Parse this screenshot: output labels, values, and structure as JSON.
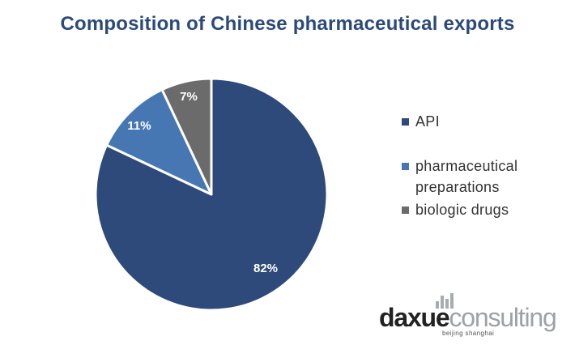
{
  "chart_data": {
    "type": "pie",
    "title": "Composition of Chinese pharmaceutical exports",
    "slices": [
      {
        "name": "API",
        "value": 82,
        "label": "82%",
        "color": "#2e4a7a"
      },
      {
        "name": "pharmaceutical preparations",
        "value": 11,
        "label": "11%",
        "color": "#4777b3"
      },
      {
        "name": "biologic drugs",
        "value": 7,
        "label": "7%",
        "color": "#6b6b6b"
      }
    ],
    "legend": {
      "position": "right",
      "entries": [
        {
          "lines": [
            "API"
          ]
        },
        {
          "lines": [
            "pharmaceutical",
            "preparations"
          ]
        },
        {
          "lines": [
            "biologic drugs"
          ]
        }
      ]
    }
  },
  "logo": {
    "text_a": "daxue",
    "text_b": "consulting",
    "tagline": "beijing shanghai"
  }
}
